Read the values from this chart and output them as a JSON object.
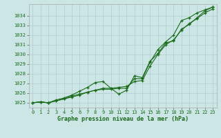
{
  "background_color": "#cce5e5",
  "grid_color": "#b0cccc",
  "line_color": "#1a6b1a",
  "xlabel": "Graphe pression niveau de la mer (hPa)",
  "ylim": [
    1024.5,
    1035.2
  ],
  "xlim": [
    -0.5,
    23.5
  ],
  "yticks": [
    1025,
    1026,
    1027,
    1028,
    1029,
    1030,
    1031,
    1032,
    1033,
    1034
  ],
  "xticks": [
    0,
    1,
    2,
    3,
    4,
    5,
    6,
    7,
    8,
    9,
    10,
    11,
    12,
    13,
    14,
    15,
    16,
    17,
    18,
    19,
    20,
    21,
    22,
    23
  ],
  "series1_x": [
    0,
    1,
    2,
    3,
    4,
    5,
    6,
    7,
    8,
    9,
    10,
    11,
    12,
    13,
    14,
    15,
    16,
    17,
    18,
    19,
    20,
    21,
    22,
    23
  ],
  "series1_y": [
    1025.0,
    1025.1,
    1025.0,
    1025.2,
    1025.4,
    1025.6,
    1025.8,
    1026.1,
    1026.3,
    1026.5,
    1026.5,
    1026.6,
    1026.7,
    1027.2,
    1027.3,
    1028.8,
    1030.0,
    1031.0,
    1031.5,
    1032.5,
    1033.2,
    1033.7,
    1034.3,
    1034.7
  ],
  "series2_x": [
    0,
    1,
    2,
    3,
    4,
    5,
    6,
    7,
    8,
    9,
    10,
    11,
    12,
    13,
    14,
    15,
    16,
    17,
    18,
    19,
    20,
    21,
    22,
    23
  ],
  "series2_y": [
    1025.0,
    1025.1,
    1025.0,
    1025.3,
    1025.5,
    1025.8,
    1026.2,
    1026.6,
    1027.1,
    1027.2,
    1026.5,
    1025.9,
    1026.3,
    1027.8,
    1027.6,
    1029.3,
    1030.1,
    1031.2,
    1031.4,
    1032.6,
    1033.1,
    1033.8,
    1034.5,
    1034.9
  ],
  "series3_x": [
    0,
    1,
    2,
    3,
    4,
    5,
    6,
    7,
    8,
    9,
    10,
    11,
    12,
    13,
    14,
    15,
    16,
    17,
    18,
    19,
    20,
    21,
    22,
    23
  ],
  "series3_y": [
    1025.0,
    1025.1,
    1025.0,
    1025.2,
    1025.4,
    1025.7,
    1025.9,
    1026.1,
    1026.3,
    1026.4,
    1026.4,
    1026.5,
    1026.5,
    1027.5,
    1027.5,
    1029.2,
    1030.5,
    1031.3,
    1032.0,
    1033.5,
    1033.8,
    1034.3,
    1034.6,
    1034.9
  ]
}
